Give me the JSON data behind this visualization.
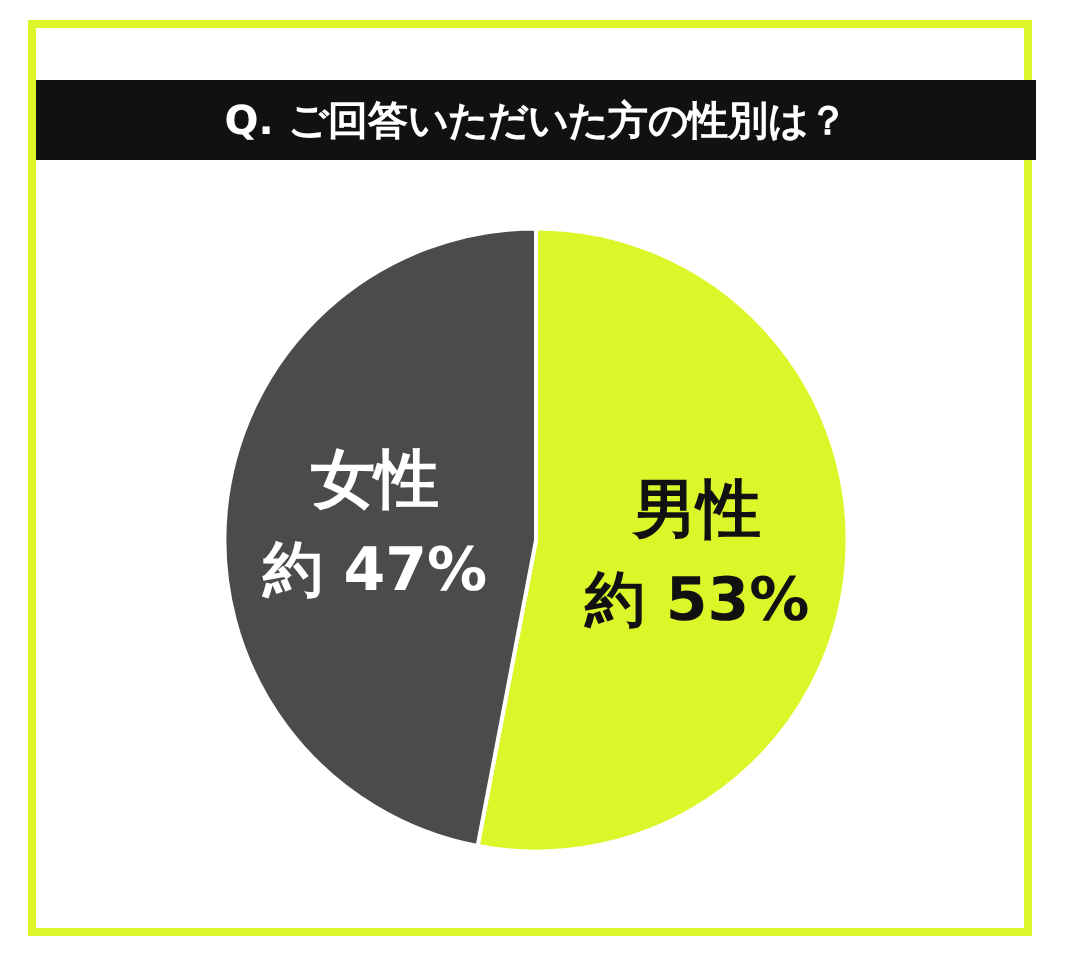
{
  "chart_data": {
    "type": "pie",
    "title": "Q. ご回答いただいた方の性別は？",
    "categories": [
      "男性",
      "女性"
    ],
    "values": [
      53,
      47
    ],
    "value_labels": [
      "約 53%",
      "約 47%"
    ],
    "colors": [
      "#dbf72a",
      "#4b4b4b"
    ],
    "legend": false
  }
}
